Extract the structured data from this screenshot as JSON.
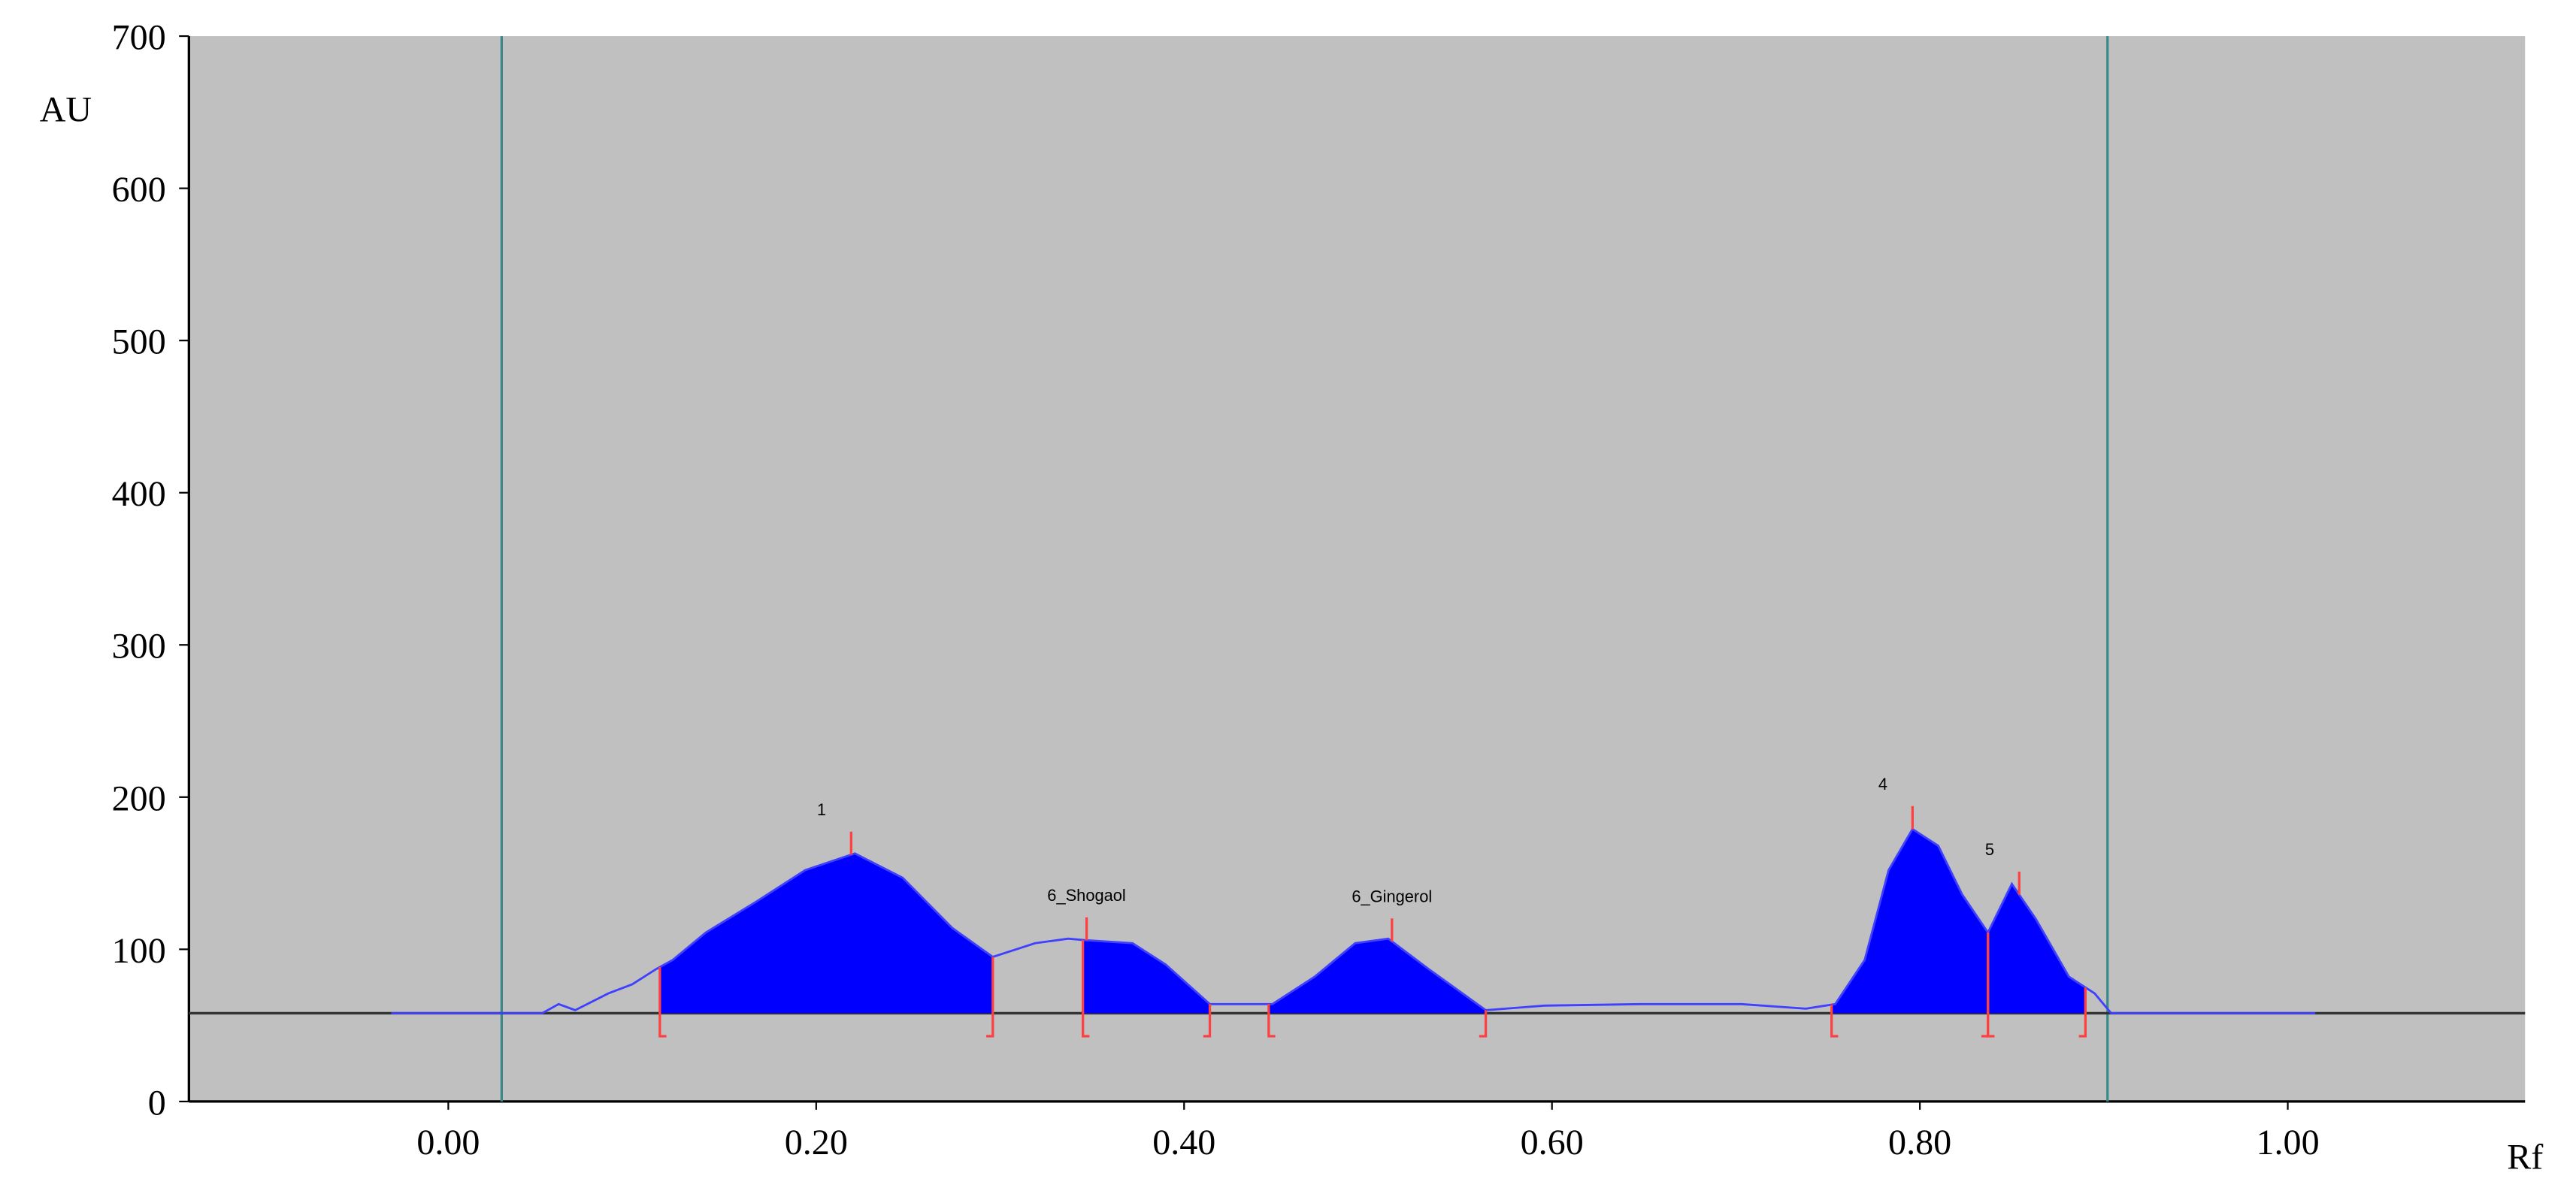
{
  "chart_data": {
    "type": "chromatogram",
    "y_label": "AU",
    "x_label": "Rf",
    "xlim": [
      -0.141,
      1.129
    ],
    "ylim": [
      0,
      700
    ],
    "xticks": [
      {
        "value": 0,
        "label": "0.00"
      },
      {
        "value": 0.2,
        "label": "0.20"
      },
      {
        "value": 0.4,
        "label": "0.40"
      },
      {
        "value": 0.6,
        "label": "0.60"
      },
      {
        "value": 0.8,
        "label": "0.80"
      },
      {
        "value": 1,
        "label": "1.00"
      }
    ],
    "yticks": [
      0,
      100,
      200,
      300,
      400,
      500,
      600,
      700
    ],
    "baseline": 58,
    "markers_x": [
      0.029,
      0.902
    ],
    "background": "#c0c0c0",
    "trace": {
      "color": "#4040ff",
      "x": [
        -0.031,
        0.051,
        0.06,
        0.069,
        0.087,
        0.1,
        0.113,
        0.122,
        0.14,
        0.167,
        0.194,
        0.221,
        0.247,
        0.274,
        0.296,
        0.319,
        0.337,
        0.346,
        0.372,
        0.39,
        0.414,
        0.435,
        0.448,
        0.471,
        0.493,
        0.511,
        0.533,
        0.564,
        0.596,
        0.649,
        0.703,
        0.738,
        0.754,
        0.77,
        0.783,
        0.796,
        0.81,
        0.823,
        0.837,
        0.85,
        0.863,
        0.881,
        0.895,
        0.904,
        1.015
      ],
      "values": [
        58,
        58,
        64,
        60,
        71,
        77,
        87,
        93,
        111,
        131,
        152,
        163,
        147,
        114,
        95,
        104,
        107,
        106,
        104,
        90,
        64,
        64,
        64,
        82,
        104,
        107,
        87,
        60,
        63,
        64,
        64,
        61,
        64,
        93,
        152,
        179,
        168,
        136,
        111,
        143,
        120,
        82,
        71,
        58,
        58
      ]
    },
    "peaks": [
      {
        "label": "1",
        "start": 0.115,
        "end": 0.296,
        "apex": 0.219
      },
      {
        "label": "6_Shogaol",
        "start": 0.345,
        "end": 0.414,
        "apex": 0.347
      },
      {
        "label": "6_Gingerol",
        "start": 0.446,
        "end": 0.564,
        "apex": 0.513
      },
      {
        "label": "4",
        "start": 0.752,
        "end": 0.837,
        "apex": 0.796
      },
      {
        "label": "5",
        "start": 0.837,
        "end": 0.89,
        "apex": 0.854
      }
    ],
    "peak_color": "#0000ff",
    "peak_marker_color": "#ff4040"
  }
}
